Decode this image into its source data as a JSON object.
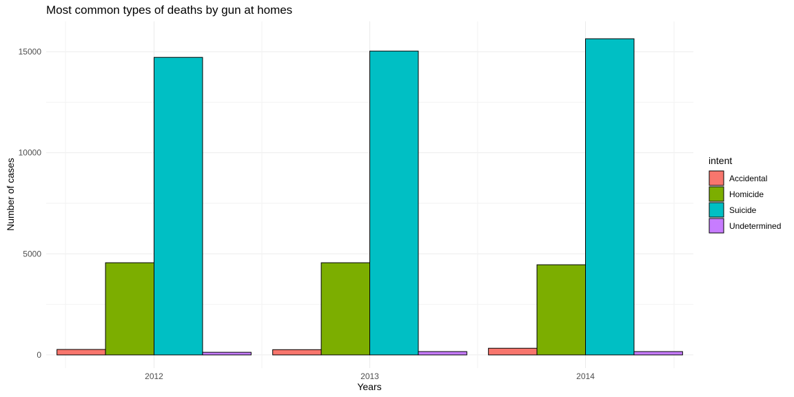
{
  "chart_data": {
    "type": "bar",
    "title": "Most common types of deaths by gun at homes",
    "xlabel": "Years",
    "ylabel": "Number of cases",
    "categories": [
      "2012",
      "2013",
      "2014"
    ],
    "series": [
      {
        "name": "Accidental",
        "color": "#f8766d",
        "values": [
          270,
          260,
          330
        ]
      },
      {
        "name": "Homicide",
        "color": "#7cae00",
        "values": [
          4560,
          4560,
          4460
        ]
      },
      {
        "name": "Suicide",
        "color": "#00bfc4",
        "values": [
          14720,
          15030,
          15640
        ]
      },
      {
        "name": "Undetermined",
        "color": "#c77cff",
        "values": [
          130,
          165,
          165
        ]
      }
    ],
    "yticks": [
      0,
      5000,
      10000,
      15000
    ],
    "ylim": [
      -650,
      16500
    ],
    "grid": true,
    "legend_title": "intent",
    "legend_position": "right"
  }
}
